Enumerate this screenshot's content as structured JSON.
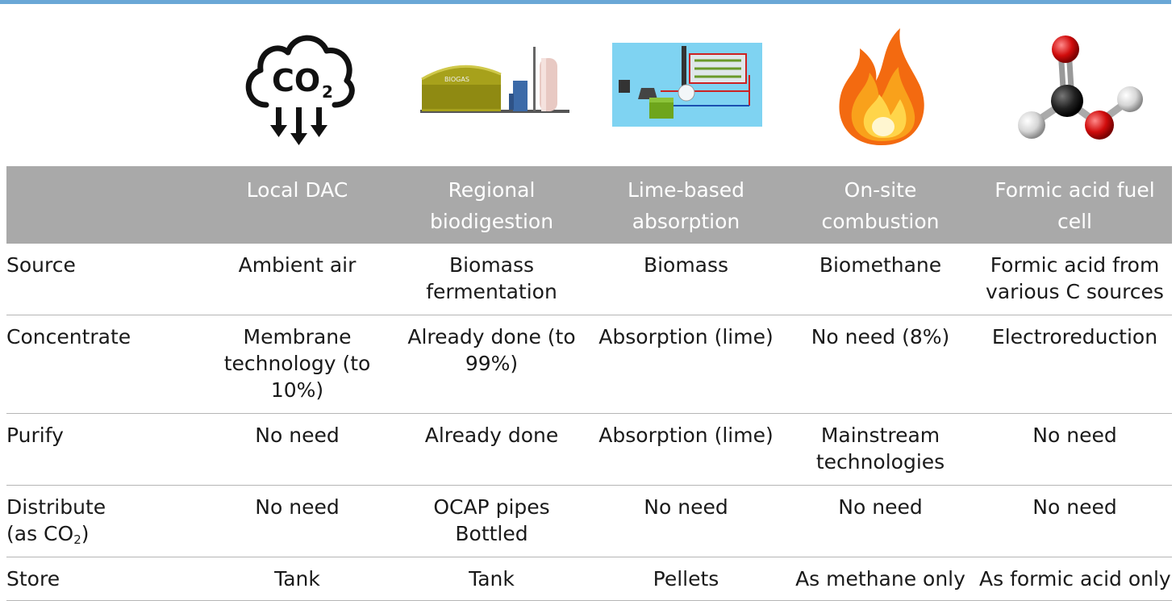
{
  "header": {
    "columns": [
      "",
      "Local DAC",
      "Regional biodigestion",
      "Lime-based absorption",
      "On-site combustion",
      "Formic acid fuel cell"
    ],
    "col1_lines": [
      "Local DAC"
    ],
    "col2_lines": [
      "Regional",
      "biodigestion"
    ],
    "col3_lines": [
      "Lime-based",
      "absorption"
    ],
    "col4_lines": [
      "On-site",
      "combustion"
    ],
    "col5_lines": [
      "Formic acid fuel",
      "cell"
    ]
  },
  "icons": {
    "co2_cloud": {
      "name": "co2-cloud-down-arrows-icon",
      "text": "CO",
      "sub": "2"
    },
    "biogas": {
      "name": "biogas-plant-icon",
      "text": "BIOGAS"
    },
    "lime": {
      "name": "lime-absorption-system-icon"
    },
    "flame": {
      "name": "flame-icon"
    },
    "molecule": {
      "name": "formic-acid-molecule-icon"
    }
  },
  "rows": [
    {
      "label_lines": [
        "Source"
      ],
      "cells": [
        [
          "Ambient air"
        ],
        [
          "Biomass",
          "fermentation"
        ],
        [
          "Biomass"
        ],
        [
          "Biomethane"
        ],
        [
          "Formic acid from",
          "various C sources"
        ]
      ]
    },
    {
      "label_lines": [
        "Concentrate"
      ],
      "cells": [
        [
          "Membrane",
          "technology (to",
          "10%)"
        ],
        [
          "Already done (to",
          "99%)"
        ],
        [
          "Absorption (lime)"
        ],
        [
          "No need (8%)"
        ],
        [
          "Electroreduction"
        ]
      ]
    },
    {
      "label_lines": [
        "Purify"
      ],
      "cells": [
        [
          "No need"
        ],
        [
          "Already done"
        ],
        [
          "Absorption (lime)"
        ],
        [
          "Mainstream",
          "technologies"
        ],
        [
          "No need"
        ]
      ]
    },
    {
      "label_lines": [
        "Distribute",
        "(as CO",
        "2",
        ")"
      ],
      "cells": [
        [
          "No need"
        ],
        [
          "OCAP pipes",
          "Bottled"
        ],
        [
          "No need"
        ],
        [
          "No need"
        ],
        [
          "No need"
        ]
      ]
    },
    {
      "label_lines": [
        "Store"
      ],
      "cells": [
        [
          "Tank"
        ],
        [
          "Tank"
        ],
        [
          "Pellets"
        ],
        [
          "As methane only"
        ],
        [
          "As formic acid only"
        ]
      ]
    }
  ],
  "colors": {
    "header_bg": "#a9a9a9",
    "top_bar": "#6aa7d6",
    "divider": "#b5b5b5"
  }
}
